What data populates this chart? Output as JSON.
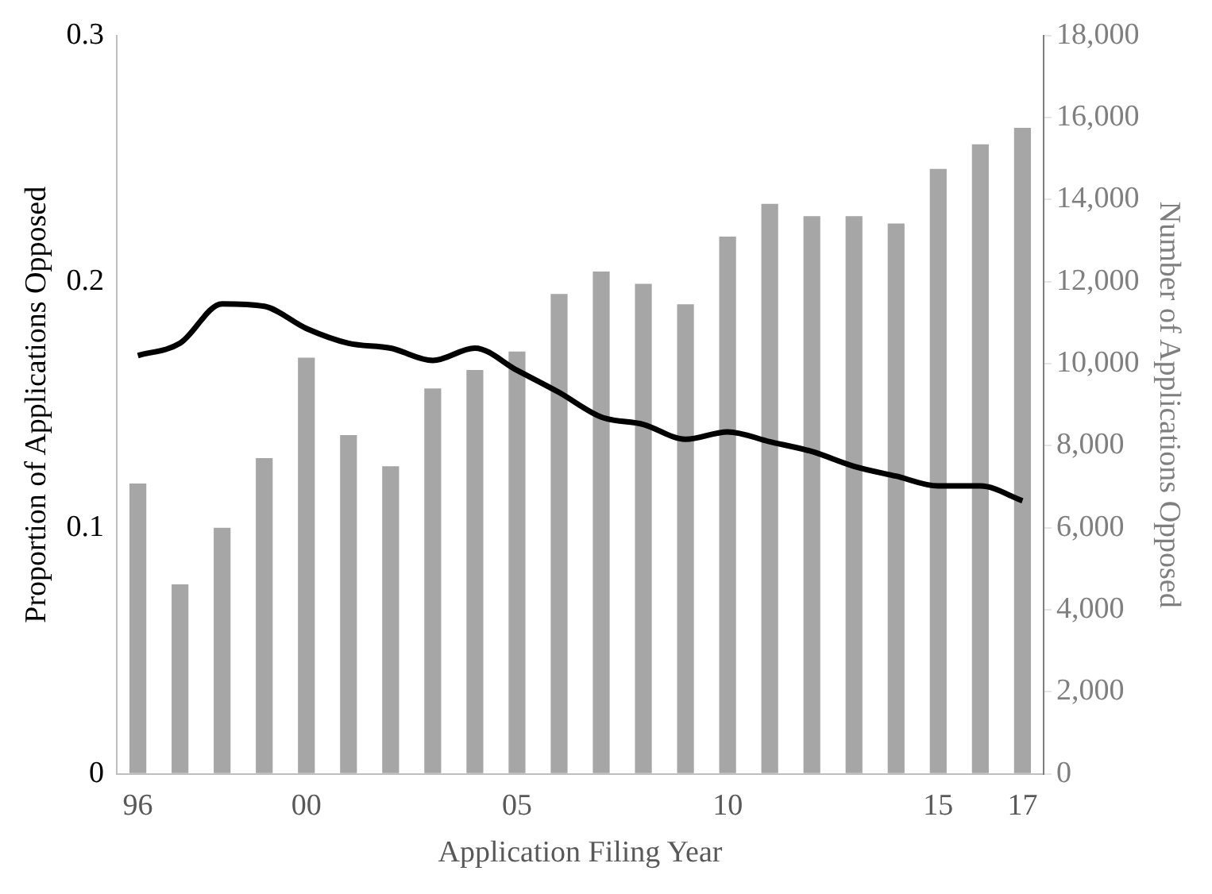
{
  "chart_data": {
    "type": "bar",
    "xlabel": "Application Filing Year",
    "ylabel": "Proportion of Applications Opposed",
    "y2label": "Number of Applications Opposed",
    "categories": [
      "96",
      null,
      null,
      null,
      "00",
      null,
      null,
      null,
      null,
      "05",
      null,
      null,
      null,
      null,
      "10",
      null,
      null,
      null,
      null,
      "15",
      null,
      "17"
    ],
    "series": [
      {
        "axis": "y2",
        "color": "#a6a6a6",
        "values": [
          7080,
          4620,
          6000,
          7700,
          10150,
          8260,
          7500,
          9400,
          9850,
          10300,
          11700,
          12250,
          11950,
          11450,
          13100,
          13900,
          13600,
          13600,
          13420,
          14750,
          15350,
          15750
        ]
      },
      {
        "type": "line",
        "axis": "y",
        "color": "#000000",
        "values": [
          0.17,
          0.175,
          0.191,
          0.19,
          0.181,
          0.175,
          0.173,
          0.168,
          0.173,
          0.164,
          0.155,
          0.145,
          0.142,
          0.136,
          0.139,
          0.135,
          0.131,
          0.125,
          0.121,
          0.117,
          0.117,
          0.111
        ]
      }
    ],
    "ylim": [
      0,
      0.3
    ],
    "yticks": [
      0,
      0.1,
      0.2,
      0.3
    ],
    "y2lim": [
      0,
      18000
    ],
    "y2ticks": [
      {
        "value": 0,
        "label": "0"
      },
      {
        "value": 2000,
        "label": "2,000"
      },
      {
        "value": 4000,
        "label": "4,000"
      },
      {
        "value": 6000,
        "label": "6,000"
      },
      {
        "value": 8000,
        "label": "8,000"
      },
      {
        "value": 10000,
        "label": "10,000"
      },
      {
        "value": 12000,
        "label": "12,000"
      },
      {
        "value": 14000,
        "label": "14,000"
      },
      {
        "value": 16000,
        "label": "16,000"
      },
      {
        "value": 18000,
        "label": "18,000"
      }
    ],
    "grid": false,
    "legend": false,
    "marker": "none",
    "line_style": "solid"
  }
}
